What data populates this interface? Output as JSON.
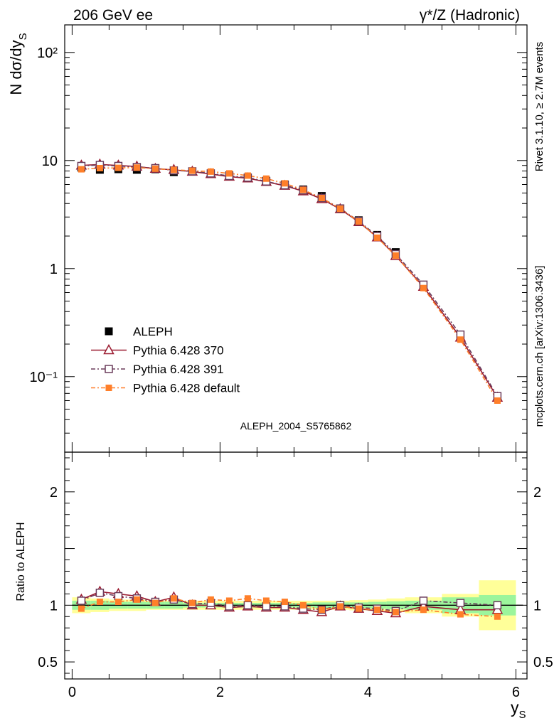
{
  "header": {
    "left": "206 GeV ee",
    "right": "γ*/Z (Hadronic)"
  },
  "side_labels": {
    "rivet": "Rivet 3.1.10, ≥ 2.7M events",
    "mcplots": "mcplots.cern.ch [arXiv:1306.3436]"
  },
  "analysis_id": "ALEPH_2004_S5765862",
  "colors": {
    "aleph": "#000000",
    "p370": "#9b1b30",
    "p391": "#6b3d5c",
    "pdef": "#ff7f2a",
    "band_green": "#9cf59c",
    "band_yellow": "#ffff99"
  },
  "chart_data": {
    "type": "line",
    "upper": {
      "ylabel": "N dσ/dy_S",
      "yscale": "log",
      "ylim": [
        0.02,
        180
      ],
      "yticks": [
        {
          "value": 100,
          "label": "10²"
        },
        {
          "value": 10,
          "label": "10"
        },
        {
          "value": 1,
          "label": "1"
        },
        {
          "value": 0.1,
          "label": "10⁻¹"
        }
      ]
    },
    "lower": {
      "ylabel": "Ratio to ALEPH",
      "ylim": [
        0.35,
        2.35
      ],
      "yticks": [
        {
          "value": 2,
          "label": "2"
        },
        {
          "value": 1,
          "label": "1"
        },
        {
          "value": 0.5,
          "label": "0.5"
        }
      ]
    },
    "xlabel": "y_S",
    "xlim": [
      -0.1,
      6.15
    ],
    "xticks": [
      {
        "value": 0,
        "label": "0"
      },
      {
        "value": 2,
        "label": "2"
      },
      {
        "value": 4,
        "label": "4"
      },
      {
        "value": 6,
        "label": "6"
      }
    ],
    "x": [
      0.125,
      0.375,
      0.625,
      0.875,
      1.125,
      1.375,
      1.625,
      1.875,
      2.125,
      2.375,
      2.625,
      2.875,
      3.125,
      3.375,
      3.625,
      3.875,
      4.125,
      4.375,
      4.75,
      5.25,
      5.75
    ],
    "x_edges": [
      0,
      0.25,
      0.5,
      0.75,
      1,
      1.25,
      1.5,
      1.75,
      2,
      2.25,
      2.5,
      2.75,
      3,
      3.25,
      3.5,
      3.75,
      4,
      4.25,
      4.5,
      5,
      5.5,
      6
    ],
    "series": [
      {
        "name": "ALEPH",
        "key": "aleph",
        "marker": "filled-square",
        "dash": "none",
        "values": [
          8.6,
          8.2,
          8.3,
          8.2,
          8.3,
          7.8,
          7.9,
          7.5,
          7.3,
          6.9,
          6.5,
          6.0,
          5.4,
          4.7,
          3.6,
          2.8,
          2.05,
          1.42,
          0.69,
          0.24,
          0.066
        ]
      },
      {
        "name": "Pythia 6.428 370",
        "key": "p370",
        "marker": "open-triangle",
        "dash": "none",
        "values": [
          9.0,
          9.2,
          9.0,
          8.8,
          8.4,
          8.2,
          7.9,
          7.5,
          7.1,
          6.85,
          6.35,
          5.85,
          5.2,
          4.4,
          3.55,
          2.7,
          1.95,
          1.31,
          0.68,
          0.23,
          0.064
        ]
      },
      {
        "name": "Pythia 6.428 391",
        "key": "p391",
        "marker": "open-square",
        "dash": "6,3,2,3",
        "values": [
          8.9,
          9.1,
          8.9,
          8.7,
          8.5,
          8.1,
          7.95,
          7.6,
          7.2,
          6.95,
          6.4,
          5.9,
          5.3,
          4.5,
          3.6,
          2.75,
          2.0,
          1.36,
          0.71,
          0.245,
          0.066
        ]
      },
      {
        "name": "Pythia 6.428 default",
        "key": "pdef",
        "marker": "filled-square-small",
        "dash": "6,3,2,3",
        "values": [
          8.3,
          8.5,
          8.55,
          8.6,
          8.4,
          8.2,
          8.05,
          7.9,
          7.6,
          7.25,
          6.8,
          6.15,
          5.35,
          4.5,
          3.58,
          2.73,
          1.93,
          1.32,
          0.66,
          0.22,
          0.06
        ]
      }
    ],
    "ratio_series": [
      {
        "key": "p370",
        "marker": "open-triangle",
        "dash": "none",
        "values": [
          1.05,
          1.12,
          1.1,
          1.08,
          1.03,
          1.07,
          1.0,
          1.0,
          0.98,
          0.99,
          0.98,
          0.98,
          0.96,
          0.94,
          0.99,
          0.97,
          0.95,
          0.93,
          0.99,
          0.96,
          0.96
        ]
      },
      {
        "key": "p391",
        "marker": "open-square",
        "dash": "6,3,2,3",
        "values": [
          1.04,
          1.11,
          1.08,
          1.06,
          1.03,
          1.05,
          1.01,
          1.02,
          0.99,
          1.0,
          0.99,
          0.99,
          0.97,
          0.96,
          1.0,
          0.98,
          0.97,
          0.95,
          1.04,
          1.02,
          1.0
        ]
      },
      {
        "key": "pdef",
        "marker": "filled-square-small",
        "dash": "6,3,2,3",
        "values": [
          0.97,
          1.03,
          1.03,
          1.05,
          1.02,
          1.06,
          1.02,
          1.05,
          1.04,
          1.06,
          1.04,
          1.03,
          1.0,
          0.96,
          0.99,
          0.97,
          0.96,
          0.94,
          0.96,
          0.92,
          0.9
        ]
      }
    ],
    "ratio_band": {
      "green": [
        0.04,
        0.04,
        0.03,
        0.03,
        0.03,
        0.03,
        0.02,
        0.02,
        0.02,
        0.02,
        0.02,
        0.02,
        0.02,
        0.025,
        0.025,
        0.025,
        0.03,
        0.035,
        0.04,
        0.07,
        0.09
      ],
      "yellow": [
        0.07,
        0.06,
        0.05,
        0.05,
        0.04,
        0.04,
        0.04,
        0.04,
        0.04,
        0.04,
        0.04,
        0.04,
        0.04,
        0.04,
        0.04,
        0.045,
        0.05,
        0.06,
        0.07,
        0.1,
        0.22
      ]
    }
  }
}
